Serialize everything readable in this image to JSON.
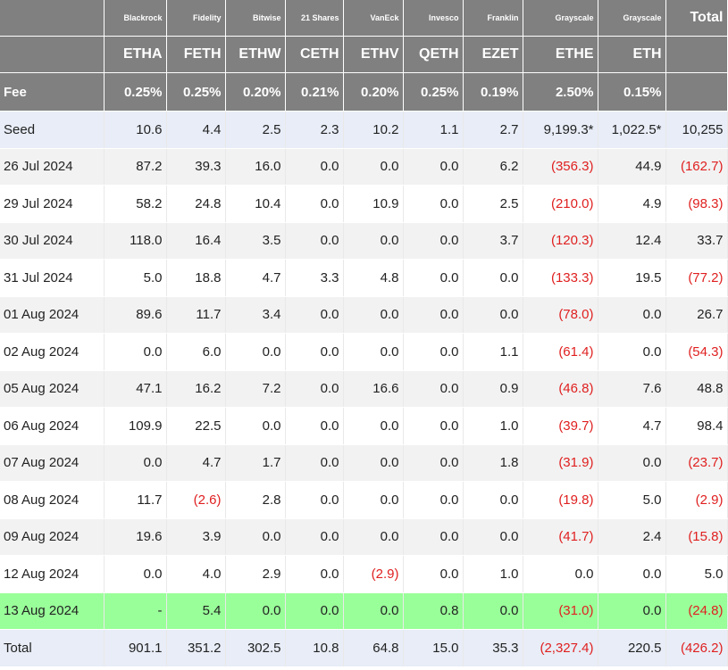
{
  "issuers": [
    "Blackrock",
    "Fidelity",
    "Bitwise",
    "21 Shares",
    "VanEck",
    "Invesco",
    "Franklin",
    "Grayscale",
    "Grayscale"
  ],
  "total_header": "Total",
  "tickers": [
    "ETHA",
    "FETH",
    "ETHW",
    "CETH",
    "ETHV",
    "QETH",
    "EZET",
    "ETHE",
    "ETH"
  ],
  "fee_label": "Fee",
  "fees": [
    "0.25%",
    "0.25%",
    "0.20%",
    "0.21%",
    "0.20%",
    "0.25%",
    "0.19%",
    "2.50%",
    "0.15%"
  ],
  "rows": [
    {
      "label": "Seed",
      "values": [
        "10.6",
        "4.4",
        "2.5",
        "2.3",
        "10.2",
        "1.1",
        "2.7",
        "9,199.3*",
        "1,022.5*",
        "10,255"
      ]
    },
    {
      "label": "26 Jul 2024",
      "values": [
        "87.2",
        "39.3",
        "16.0",
        "0.0",
        "0.0",
        "0.0",
        "6.2",
        "(356.3)",
        "44.9",
        "(162.7)"
      ]
    },
    {
      "label": "29 Jul 2024",
      "values": [
        "58.2",
        "24.8",
        "10.4",
        "0.0",
        "10.9",
        "0.0",
        "2.5",
        "(210.0)",
        "4.9",
        "(98.3)"
      ]
    },
    {
      "label": "30 Jul 2024",
      "values": [
        "118.0",
        "16.4",
        "3.5",
        "0.0",
        "0.0",
        "0.0",
        "3.7",
        "(120.3)",
        "12.4",
        "33.7"
      ]
    },
    {
      "label": "31 Jul 2024",
      "values": [
        "5.0",
        "18.8",
        "4.7",
        "3.3",
        "4.8",
        "0.0",
        "0.0",
        "(133.3)",
        "19.5",
        "(77.2)"
      ]
    },
    {
      "label": "01 Aug 2024",
      "values": [
        "89.6",
        "11.7",
        "3.4",
        "0.0",
        "0.0",
        "0.0",
        "0.0",
        "(78.0)",
        "0.0",
        "26.7"
      ]
    },
    {
      "label": "02 Aug 2024",
      "values": [
        "0.0",
        "6.0",
        "0.0",
        "0.0",
        "0.0",
        "0.0",
        "1.1",
        "(61.4)",
        "0.0",
        "(54.3)"
      ]
    },
    {
      "label": "05 Aug 2024",
      "values": [
        "47.1",
        "16.2",
        "7.2",
        "0.0",
        "16.6",
        "0.0",
        "0.9",
        "(46.8)",
        "7.6",
        "48.8"
      ]
    },
    {
      "label": "06 Aug 2024",
      "values": [
        "109.9",
        "22.5",
        "0.0",
        "0.0",
        "0.0",
        "0.0",
        "1.0",
        "(39.7)",
        "4.7",
        "98.4"
      ]
    },
    {
      "label": "07 Aug 2024",
      "values": [
        "0.0",
        "4.7",
        "1.7",
        "0.0",
        "0.0",
        "0.0",
        "1.8",
        "(31.9)",
        "0.0",
        "(23.7)"
      ]
    },
    {
      "label": "08 Aug 2024",
      "values": [
        "11.7",
        "(2.6)",
        "2.8",
        "0.0",
        "0.0",
        "0.0",
        "0.0",
        "(19.8)",
        "5.0",
        "(2.9)"
      ]
    },
    {
      "label": "09 Aug 2024",
      "values": [
        "19.6",
        "3.9",
        "0.0",
        "0.0",
        "0.0",
        "0.0",
        "0.0",
        "(41.7)",
        "2.4",
        "(15.8)"
      ]
    },
    {
      "label": "12 Aug 2024",
      "values": [
        "0.0",
        "4.0",
        "2.9",
        "0.0",
        "(2.9)",
        "0.0",
        "1.0",
        "0.0",
        "0.0",
        "5.0"
      ]
    },
    {
      "label": "13 Aug 2024",
      "values": [
        "-",
        "5.4",
        "0.0",
        "0.0",
        "0.0",
        "0.8",
        "0.0",
        "(31.0)",
        "0.0",
        "(24.8)"
      ]
    },
    {
      "label": "Total",
      "values": [
        "901.1",
        "351.2",
        "302.5",
        "10.8",
        "64.8",
        "15.0",
        "35.3",
        "(2,327.4)",
        "220.5",
        "(426.2)"
      ]
    }
  ],
  "colors": {
    "header_bg": "#808080",
    "seed_total_bg": "#e8edf7",
    "highlight_bg": "#99ff99",
    "negative_text": "#e02020",
    "stripe_bg": "#f2f2f2"
  }
}
